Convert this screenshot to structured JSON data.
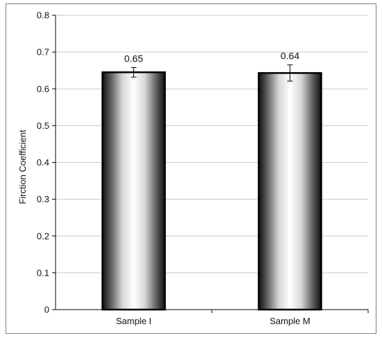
{
  "chart_data": {
    "type": "bar",
    "ylabel": "Firction Coefficient",
    "xlabel": "",
    "categories": [
      "Sample I",
      "Sample M"
    ],
    "values": [
      0.645,
      0.643
    ],
    "data_labels": [
      "0.65",
      "0.64"
    ],
    "error": [
      0.013,
      0.022
    ],
    "ylim": [
      0,
      0.8
    ],
    "yticks": [
      "0",
      "0.1",
      "0.2",
      "0.3",
      "0.4",
      "0.5",
      "0.6",
      "0.7",
      "0.8"
    ],
    "grid": true,
    "legend": "none",
    "colors": {
      "bar_edge": "#000000",
      "bar_dark": "#111111",
      "bar_light": "#ffffff",
      "grid": "#c8c8c8",
      "frame": "#7f7f7f"
    }
  }
}
